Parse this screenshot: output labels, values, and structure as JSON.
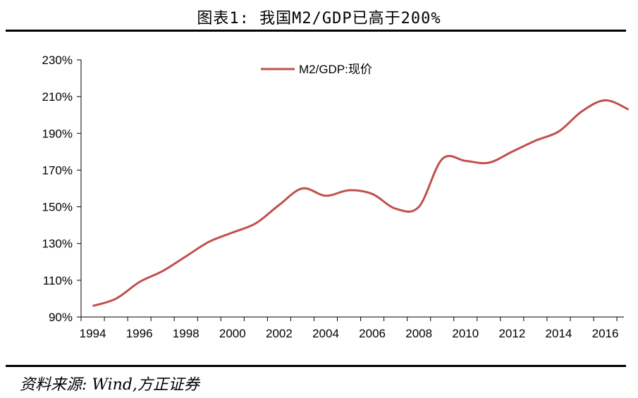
{
  "header": {
    "title": "图表1:  我国M2/GDP已高于200%"
  },
  "footer": {
    "source": "资料来源: Wind,方正证券"
  },
  "colors": {
    "series": "#c0504d",
    "axis": "#000000"
  },
  "chart_data": {
    "type": "line",
    "title": "",
    "xlabel": "",
    "ylabel": "",
    "x_ticks": [
      "1994",
      "1996",
      "1998",
      "2000",
      "2002",
      "2004",
      "2006",
      "2008",
      "2010",
      "2012",
      "2014",
      "2016"
    ],
    "y_ticks": [
      "90%",
      "110%",
      "130%",
      "150%",
      "170%",
      "190%",
      "210%",
      "230%"
    ],
    "ylim": [
      90,
      230
    ],
    "xlim": [
      1994,
      2017.3
    ],
    "legend": {
      "position": "top-center"
    },
    "series": [
      {
        "name": "M2/GDP:现价",
        "x": [
          1994,
          1995,
          1996,
          1997,
          1998,
          1999,
          2000,
          2001,
          2002,
          2003,
          2004,
          2005,
          2006,
          2007,
          2008,
          2009,
          2010,
          2011,
          2012,
          2013,
          2014,
          2015,
          2016,
          2017
        ],
        "values": [
          96,
          100,
          109,
          115,
          123,
          131,
          136,
          141,
          151,
          160,
          156,
          159,
          157,
          149,
          150,
          176,
          175,
          174,
          180,
          186,
          191,
          202,
          208,
          203
        ]
      }
    ]
  }
}
